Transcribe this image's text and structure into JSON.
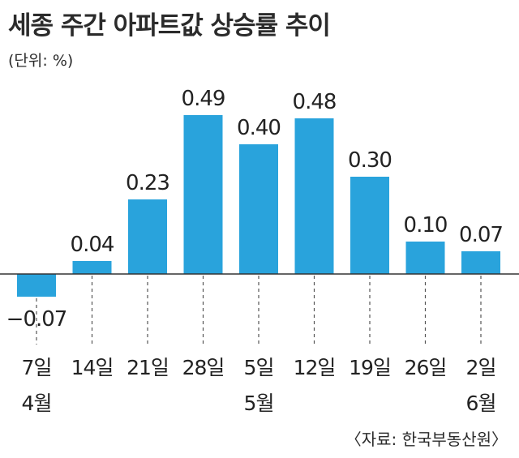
{
  "title": "세종 주간 아파트값 상승률 추이",
  "unit": "(단위: %)",
  "source": "〈자료: 한국부동산원〉",
  "chart_data": {
    "type": "bar",
    "title": "세종 주간 아파트값 상승률 추이",
    "xlabel": "",
    "ylabel": "",
    "categories": [
      "7일",
      "14일",
      "21일",
      "28일",
      "5일",
      "12일",
      "19일",
      "26일",
      "2일"
    ],
    "month_labels": [
      "4월",
      "",
      "",
      "",
      "5월",
      "",
      "",
      "",
      "6월"
    ],
    "values": [
      -0.07,
      0.04,
      0.23,
      0.49,
      0.4,
      0.48,
      0.3,
      0.1,
      0.07
    ],
    "value_labels": [
      "−0.07",
      "0.04",
      "0.23",
      "0.49",
      "0.40",
      "0.48",
      "0.30",
      "0.10",
      "0.07"
    ],
    "ylim": [
      -0.07,
      0.49
    ],
    "grid": false,
    "bar_color": "#29a3dc"
  }
}
